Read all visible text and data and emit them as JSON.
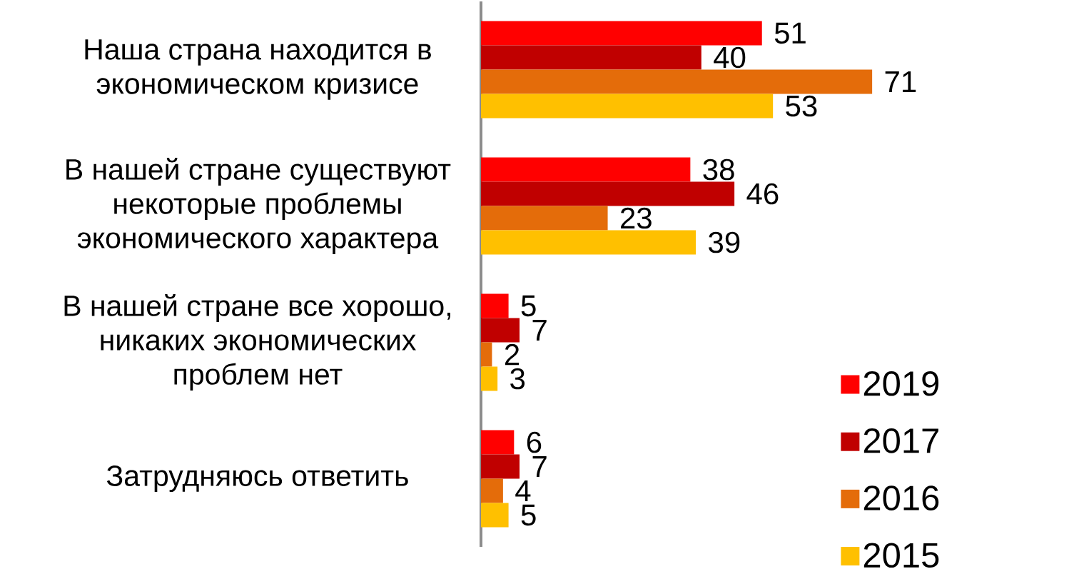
{
  "chart_data": {
    "type": "bar",
    "orientation": "horizontal",
    "categories": [
      "Наша страна находится в экономическом кризисе",
      "В нашей стране существуют некоторые проблемы экономического характера",
      "В нашей стране все хорошо, никаких экономических проблем нет",
      "Затрудняюсь ответить"
    ],
    "series": [
      {
        "name": "2019",
        "color": "#ff0000",
        "values": [
          51,
          38,
          5,
          6
        ]
      },
      {
        "name": "2017",
        "color": "#c00000",
        "values": [
          40,
          46,
          7,
          7
        ]
      },
      {
        "name": "2016",
        "color": "#e46c0a",
        "values": [
          71,
          23,
          2,
          4
        ]
      },
      {
        "name": "2015",
        "color": "#ffc000",
        "values": [
          53,
          39,
          3,
          5
        ]
      }
    ],
    "data_labels": true,
    "legend": "bottom right",
    "tick_labels": "y"
  }
}
